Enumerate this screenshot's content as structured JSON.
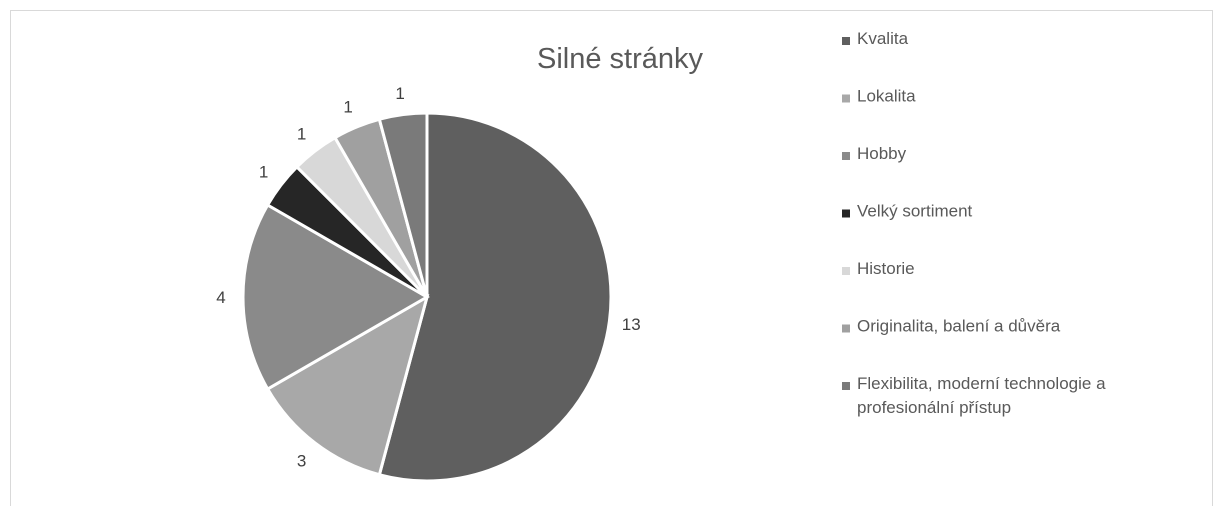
{
  "chart_data": {
    "type": "pie",
    "title": "Silné stránky",
    "legend_position": "right",
    "categories": [
      "Kvalita",
      "Lokalita",
      "Hobby",
      "Velký sortiment",
      "Historie",
      "Originalita, balení a důvěra",
      "Flexibilita, moderní technologie a profesionální přístup"
    ],
    "values": [
      13,
      3,
      4,
      1,
      1,
      1,
      1
    ],
    "colors": [
      "#5f5f5f",
      "#a8a8a8",
      "#8a8a8a",
      "#262626",
      "#d8d8d8",
      "#a0a0a0",
      "#7a7a7a"
    ]
  }
}
